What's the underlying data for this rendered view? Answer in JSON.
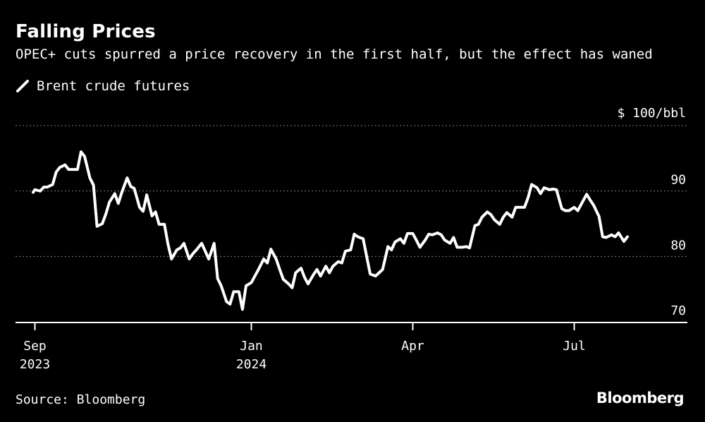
{
  "title": "Falling Prices",
  "subtitle": "OPEC+ cuts spurred a price recovery in the first half, but the effect has waned",
  "source": "Source: Bloomberg",
  "brand": "Bloomberg",
  "colors": {
    "background": "#000000",
    "line": "#ffffff",
    "grid": "#808080"
  },
  "chart_data": {
    "type": "line",
    "title": "Falling Prices",
    "subtitle": "OPEC+ cuts spurred a price recovery in the first half, but the effect has waned",
    "ylabel": "",
    "unit_label": "$ 100/bbl",
    "ylim": [
      70,
      100
    ],
    "yticks": [
      90,
      80,
      70
    ],
    "xlim": [
      "2023-09-01",
      "2024-08-31"
    ],
    "xticks": [
      {
        "date": "2023-09-01",
        "label": "Sep",
        "sublabel": "2023"
      },
      {
        "date": "2024-01-01",
        "label": "Jan",
        "sublabel": "2024"
      },
      {
        "date": "2024-04-01",
        "label": "Apr",
        "sublabel": ""
      },
      {
        "date": "2024-07-01",
        "label": "Jul",
        "sublabel": ""
      }
    ],
    "grid": true,
    "legend": "top-left",
    "series": [
      {
        "name": "Brent crude futures",
        "color": "#ffffff",
        "points": [
          [
            "2023-08-31",
            89.8
          ],
          [
            "2023-09-01",
            90.2
          ],
          [
            "2023-09-04",
            90.0
          ],
          [
            "2023-09-06",
            90.6
          ],
          [
            "2023-09-08",
            90.6
          ],
          [
            "2023-09-11",
            91.0
          ],
          [
            "2023-09-13",
            92.9
          ],
          [
            "2023-09-15",
            93.6
          ],
          [
            "2023-09-18",
            94.0
          ],
          [
            "2023-09-20",
            93.3
          ],
          [
            "2023-09-22",
            93.3
          ],
          [
            "2023-09-25",
            93.3
          ],
          [
            "2023-09-27",
            96.0
          ],
          [
            "2023-09-29",
            95.3
          ],
          [
            "2023-10-02",
            92.0
          ],
          [
            "2023-10-04",
            90.9
          ],
          [
            "2023-10-06",
            84.6
          ],
          [
            "2023-10-09",
            85.0
          ],
          [
            "2023-10-11",
            86.5
          ],
          [
            "2023-10-13",
            88.3
          ],
          [
            "2023-10-16",
            89.6
          ],
          [
            "2023-10-18",
            88.1
          ],
          [
            "2023-10-20",
            89.8
          ],
          [
            "2023-10-23",
            92.0
          ],
          [
            "2023-10-25",
            90.7
          ],
          [
            "2023-10-27",
            90.4
          ],
          [
            "2023-10-30",
            87.5
          ],
          [
            "2023-11-01",
            86.9
          ],
          [
            "2023-11-03",
            89.4
          ],
          [
            "2023-11-06",
            86.2
          ],
          [
            "2023-11-08",
            86.8
          ],
          [
            "2023-11-10",
            84.9
          ],
          [
            "2023-11-13",
            84.9
          ],
          [
            "2023-11-15",
            81.9
          ],
          [
            "2023-11-17",
            79.6
          ],
          [
            "2023-11-20",
            81.0
          ],
          [
            "2023-11-22",
            81.3
          ],
          [
            "2023-11-24",
            82.0
          ],
          [
            "2023-11-27",
            79.6
          ],
          [
            "2023-11-29",
            80.4
          ],
          [
            "2023-12-01",
            81.0
          ],
          [
            "2023-12-04",
            82.0
          ],
          [
            "2023-12-06",
            80.8
          ],
          [
            "2023-12-08",
            79.6
          ],
          [
            "2023-12-11",
            82.0
          ],
          [
            "2023-12-13",
            76.6
          ],
          [
            "2023-12-15",
            75.5
          ],
          [
            "2023-12-18",
            73.1
          ],
          [
            "2023-12-20",
            72.7
          ],
          [
            "2023-12-22",
            74.6
          ],
          [
            "2023-12-25",
            74.6
          ],
          [
            "2023-12-27",
            71.9
          ],
          [
            "2023-12-29",
            75.5
          ],
          [
            "2024-01-01",
            76.0
          ],
          [
            "2024-01-03",
            77.0
          ],
          [
            "2024-01-05",
            78.0
          ],
          [
            "2024-01-08",
            79.6
          ],
          [
            "2024-01-10",
            79.0
          ],
          [
            "2024-01-12",
            81.1
          ],
          [
            "2024-01-15",
            79.6
          ],
          [
            "2024-01-17",
            78.0
          ],
          [
            "2024-01-19",
            76.5
          ],
          [
            "2024-01-22",
            75.8
          ],
          [
            "2024-01-24",
            75.2
          ],
          [
            "2024-01-26",
            77.5
          ],
          [
            "2024-01-29",
            78.2
          ],
          [
            "2024-01-31",
            76.8
          ],
          [
            "2024-02-02",
            75.8
          ],
          [
            "2024-02-05",
            77.2
          ],
          [
            "2024-02-07",
            78.0
          ],
          [
            "2024-02-09",
            77.0
          ],
          [
            "2024-02-12",
            78.5
          ],
          [
            "2024-02-14",
            77.5
          ],
          [
            "2024-02-16",
            78.5
          ],
          [
            "2024-02-19",
            79.2
          ],
          [
            "2024-02-21",
            79.0
          ],
          [
            "2024-02-23",
            80.8
          ],
          [
            "2024-02-26",
            81.0
          ],
          [
            "2024-02-28",
            83.4
          ],
          [
            "2024-03-01",
            83.0
          ],
          [
            "2024-03-04",
            82.7
          ],
          [
            "2024-03-06",
            80.0
          ],
          [
            "2024-03-08",
            77.3
          ],
          [
            "2024-03-11",
            77.0
          ],
          [
            "2024-03-13",
            77.5
          ],
          [
            "2024-03-15",
            78.0
          ],
          [
            "2024-03-18",
            81.5
          ],
          [
            "2024-03-20",
            81.0
          ],
          [
            "2024-03-22",
            82.2
          ],
          [
            "2024-03-25",
            82.7
          ],
          [
            "2024-03-27",
            82.0
          ],
          [
            "2024-03-29",
            83.5
          ],
          [
            "2024-04-01",
            83.5
          ],
          [
            "2024-04-03",
            82.5
          ],
          [
            "2024-04-05",
            81.4
          ],
          [
            "2024-04-08",
            82.5
          ],
          [
            "2024-04-10",
            83.4
          ],
          [
            "2024-04-12",
            83.3
          ],
          [
            "2024-04-15",
            83.6
          ],
          [
            "2024-04-17",
            83.3
          ],
          [
            "2024-04-19",
            82.5
          ],
          [
            "2024-04-22",
            82.0
          ],
          [
            "2024-04-24",
            82.9
          ],
          [
            "2024-04-26",
            81.4
          ],
          [
            "2024-04-29",
            81.4
          ],
          [
            "2024-05-01",
            81.5
          ],
          [
            "2024-05-03",
            81.3
          ],
          [
            "2024-05-06",
            84.7
          ],
          [
            "2024-05-08",
            84.9
          ],
          [
            "2024-05-10",
            86.0
          ],
          [
            "2024-05-13",
            86.8
          ],
          [
            "2024-05-15",
            86.4
          ],
          [
            "2024-05-17",
            85.6
          ],
          [
            "2024-05-20",
            84.9
          ],
          [
            "2024-05-22",
            86.0
          ],
          [
            "2024-05-24",
            86.7
          ],
          [
            "2024-05-27",
            86.0
          ],
          [
            "2024-05-29",
            87.5
          ],
          [
            "2024-05-31",
            87.5
          ],
          [
            "2024-06-03",
            87.5
          ],
          [
            "2024-06-05",
            89.0
          ],
          [
            "2024-06-07",
            91.0
          ],
          [
            "2024-06-10",
            90.5
          ],
          [
            "2024-06-12",
            89.6
          ],
          [
            "2024-06-14",
            90.5
          ],
          [
            "2024-06-17",
            90.2
          ],
          [
            "2024-06-19",
            90.3
          ],
          [
            "2024-06-21",
            90.2
          ],
          [
            "2024-06-24",
            87.3
          ],
          [
            "2024-06-26",
            87.0
          ],
          [
            "2024-06-28",
            87.0
          ],
          [
            "2024-07-01",
            87.5
          ],
          [
            "2024-07-03",
            87.0
          ],
          [
            "2024-07-05",
            88.0
          ],
          [
            "2024-07-08",
            89.5
          ],
          [
            "2024-07-10",
            88.6
          ],
          [
            "2024-07-12",
            87.8
          ],
          [
            "2024-07-15",
            86.1
          ],
          [
            "2024-07-17",
            83.0
          ],
          [
            "2024-07-19",
            82.9
          ],
          [
            "2024-07-22",
            83.3
          ],
          [
            "2024-07-24",
            83.0
          ],
          [
            "2024-07-26",
            83.6
          ],
          [
            "2024-07-29",
            82.3
          ],
          [
            "2024-07-31",
            83.0
          ]
        ]
      }
    ]
  }
}
